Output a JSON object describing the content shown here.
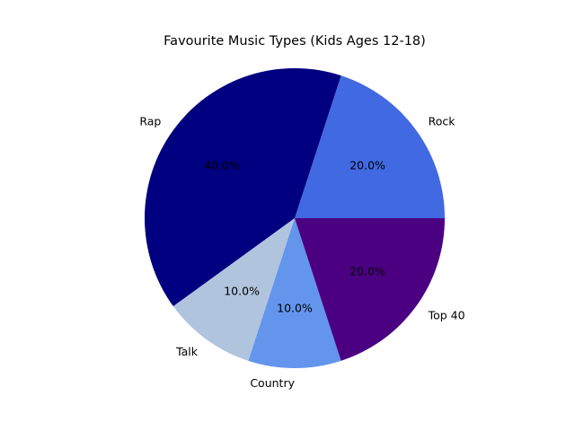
{
  "chart_data": {
    "type": "pie",
    "title": "Favourite Music Types (Kids Ages 12-18)",
    "categories": [
      "Rock",
      "Rap",
      "Talk",
      "Country",
      "Top 40"
    ],
    "values": [
      20,
      40,
      10,
      10,
      20
    ],
    "percent_labels": [
      "20.0%",
      "40.0%",
      "10.0%",
      "10.0%",
      "20.0%"
    ],
    "colors": [
      "#4169E1",
      "#000080",
      "#B0C4DE",
      "#6495ED",
      "#4B0082"
    ],
    "start_angle_deg": 0,
    "direction": "counterclockwise",
    "legend": "none"
  }
}
